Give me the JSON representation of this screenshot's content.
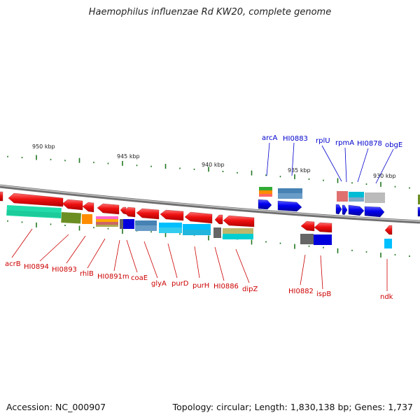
{
  "title": "Haemophilus influenzae Rd KW20, complete genome",
  "footer": {
    "accession": "Accession: NC_000907",
    "stats": "Topology: circular; Length: 1,830,138 bp; Genes: 1,737"
  },
  "scale_labels": [
    "950 kbp",
    "945 kbp",
    "940 kbp",
    "935 kbp",
    "930 kbp"
  ],
  "genes": {
    "reverse_strand": [
      "acrB",
      "HI0894",
      "HI0893",
      "rhlB",
      "HI0891m",
      "coaE",
      "glyA",
      "purD",
      "purH",
      "HI0886",
      "dipZ",
      "HI0882",
      "ispB",
      "ndk"
    ],
    "forward_strand": [
      "arcA",
      "HI0883",
      "rplU",
      "rpmA",
      "HI0878",
      "obgE"
    ]
  },
  "colors": {
    "reverse_gene": "#ee1111",
    "forward_gene": "#0000dd",
    "reverse_label": "#cc0000",
    "forward_label": "#0000cc",
    "backbone": "#777777",
    "tick": "#227722"
  }
}
